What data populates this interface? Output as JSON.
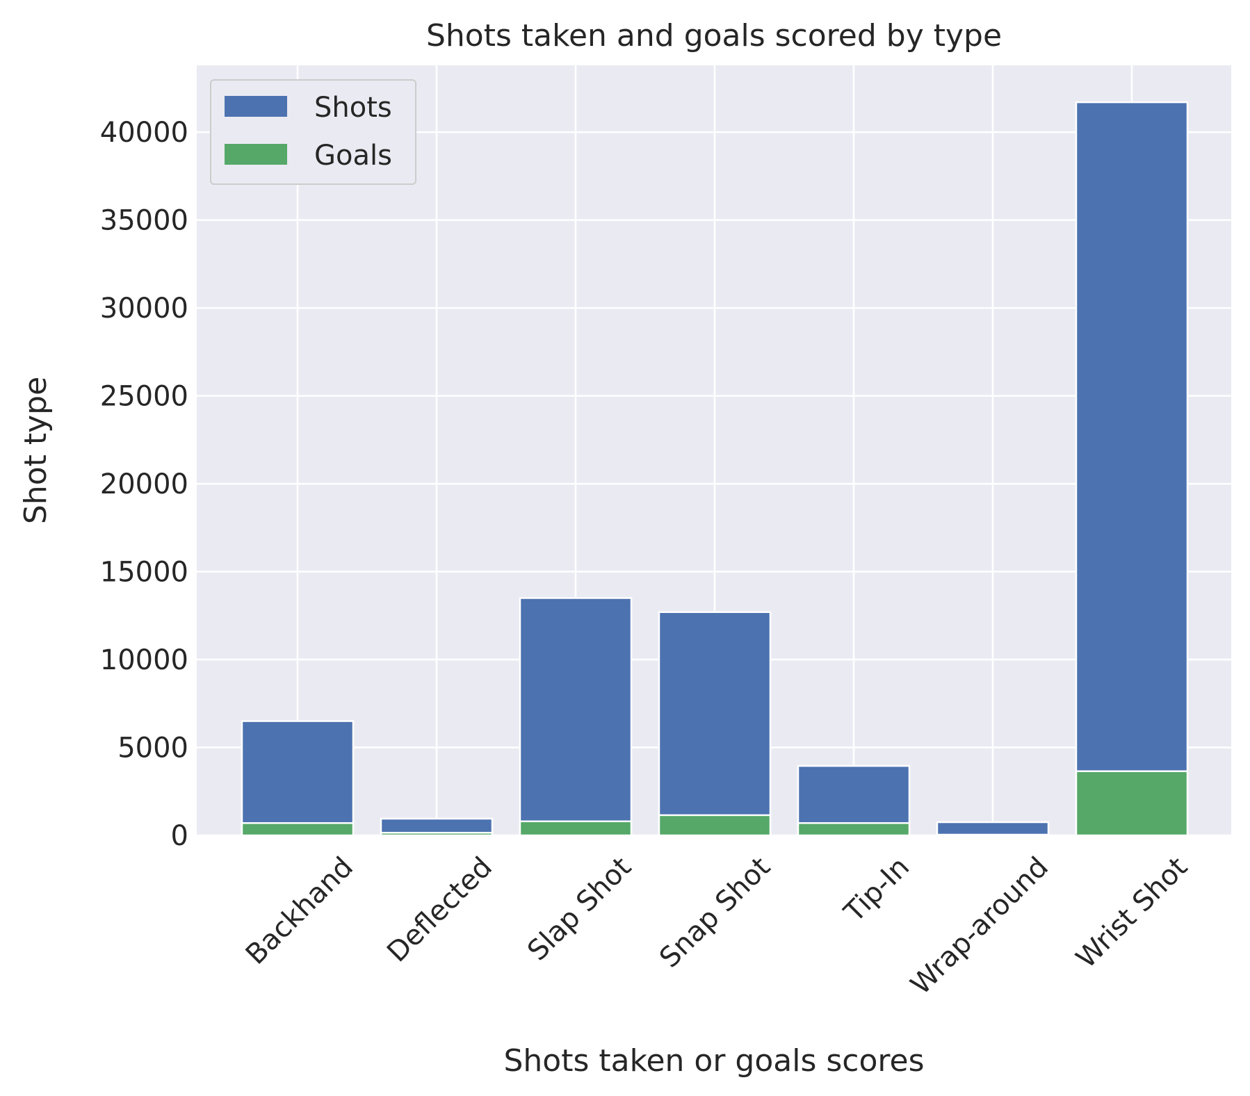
{
  "chart_data": {
    "type": "bar",
    "stacked": false,
    "title": "Shots taken and goals scored by type",
    "xlabel": "Shots taken or goals scores",
    "ylabel": "Shot type",
    "categories": [
      "Backhand",
      "Deflected",
      "Slap Shot",
      "Snap Shot",
      "Tip-In",
      "Wrap-around",
      "Wrist Shot"
    ],
    "series": [
      {
        "name": "Shots",
        "color": "#4c72b0",
        "values": [
          6500,
          950,
          13500,
          12700,
          3950,
          750,
          41700
        ]
      },
      {
        "name": "Goals",
        "color": "#55a868",
        "values": [
          700,
          150,
          800,
          1150,
          700,
          40,
          3650
        ]
      }
    ],
    "ylim": [
      0,
      43800
    ],
    "yticks": [
      0,
      5000,
      10000,
      15000,
      20000,
      25000,
      30000,
      35000,
      40000
    ],
    "grid": true,
    "legend_position": "top-left",
    "colors": {
      "background": "#eaeaf2",
      "grid": "#ffffff",
      "text": "#262626"
    }
  }
}
